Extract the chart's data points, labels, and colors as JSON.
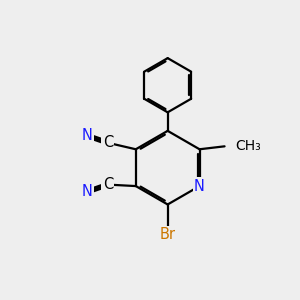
{
  "background_color": "#eeeeee",
  "bond_color": "#000000",
  "bond_width": 1.6,
  "atom_colors": {
    "N": "#1a1aff",
    "Br": "#cc7700",
    "C": "#000000"
  },
  "font_size_atom": 10.5
}
